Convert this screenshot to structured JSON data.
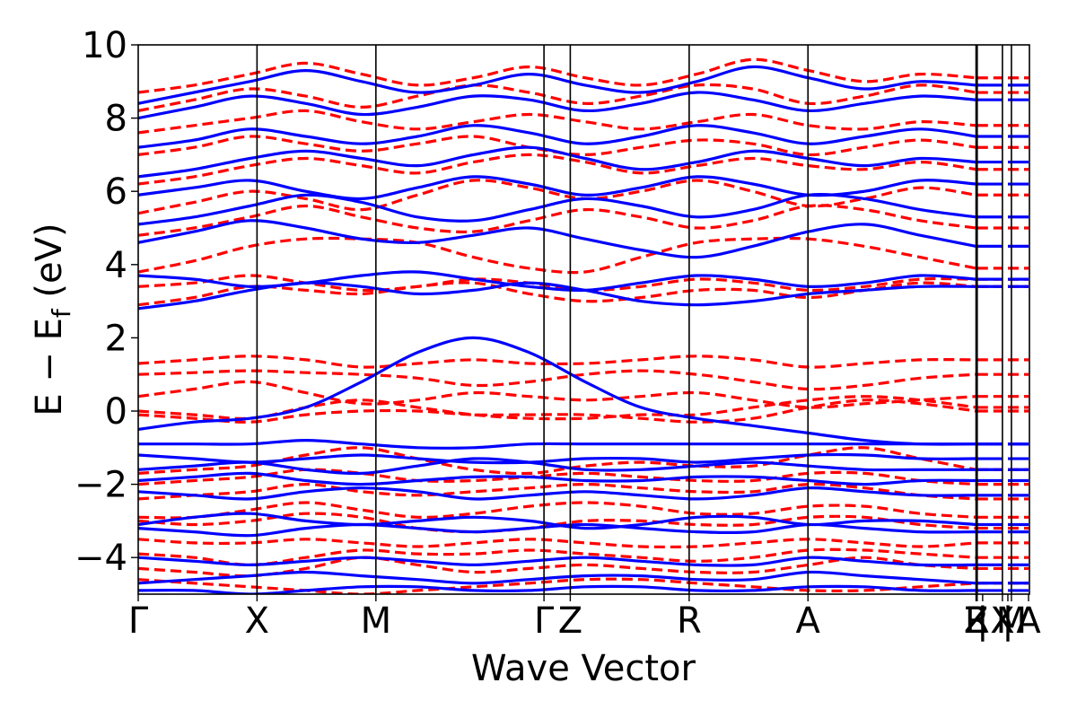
{
  "chart_data": {
    "type": "line",
    "title": "",
    "xlabel": "Wave Vector",
    "ylabel": "E − E_f (eV)",
    "ylabel_main": "E − E",
    "ylabel_sub": "f",
    "ylabel_unit": " (eV)",
    "ylim": [
      -5,
      10
    ],
    "yticks": [
      -4,
      -2,
      0,
      2,
      4,
      6,
      8,
      10
    ],
    "ytick_labels": [
      "−4",
      "−2",
      "0",
      "2",
      "4",
      "6",
      "8",
      "10"
    ],
    "x_range": [
      0,
      1
    ],
    "kpoints": [
      {
        "label": "Γ",
        "x": 0.0
      },
      {
        "label": "X",
        "x": 0.1333
      },
      {
        "label": "M",
        "x": 0.2667
      },
      {
        "label": "Γ",
        "x": 0.4553
      },
      {
        "label": "Z",
        "x": 0.4848
      },
      {
        "label": "R",
        "x": 0.6182
      },
      {
        "label": "A",
        "x": 0.7515
      },
      {
        "label": "Z",
        "x": 0.9401
      },
      {
        "label": "R",
        "x": 0.9414
      },
      {
        "label": "|",
        "x": 0.9475
      },
      {
        "label": "X",
        "x": 0.9697
      },
      {
        "label": "|",
        "x": 0.9758
      },
      {
        "label": "M",
        "x": 0.9798
      },
      {
        "label": "A",
        "x": 0.999
      }
    ],
    "grid": false,
    "legend": "none",
    "series": [
      {
        "style": "dashed",
        "color": "#ff0000",
        "bands": [
          [
            -4.6,
            -4.7,
            -4.8,
            -4.9,
            -5.0,
            -4.9,
            -4.8,
            -4.7,
            -4.6,
            -4.6,
            -4.7,
            -4.8,
            -4.9,
            -4.9,
            -4.8,
            -4.7
          ],
          [
            -4.3,
            -4.4,
            -4.5,
            -4.3,
            -4.0,
            -4.2,
            -4.4,
            -4.3,
            -4.2,
            -4.3,
            -4.4,
            -4.4,
            -4.2,
            -4.0,
            -4.2,
            -4.3
          ],
          [
            -3.9,
            -4.0,
            -4.2,
            -4.0,
            -3.8,
            -3.9,
            -3.9,
            -3.8,
            -3.9,
            -4.0,
            -4.1,
            -4.0,
            -3.8,
            -3.8,
            -3.9,
            -4.0
          ],
          [
            -3.5,
            -3.6,
            -3.6,
            -3.5,
            -3.6,
            -3.7,
            -3.6,
            -3.5,
            -3.6,
            -3.7,
            -3.7,
            -3.6,
            -3.5,
            -3.6,
            -3.7,
            -3.6
          ],
          [
            -3.0,
            -3.1,
            -3.0,
            -2.8,
            -2.9,
            -3.2,
            -3.3,
            -3.2,
            -3.0,
            -3.0,
            -3.1,
            -3.1,
            -2.9,
            -2.9,
            -3.1,
            -3.2
          ],
          [
            -2.9,
            -2.9,
            -2.7,
            -2.5,
            -2.7,
            -2.9,
            -2.8,
            -2.6,
            -2.5,
            -2.6,
            -2.8,
            -2.8,
            -2.6,
            -2.6,
            -2.8,
            -2.9
          ],
          [
            -2.4,
            -2.3,
            -2.2,
            -2.0,
            -2.2,
            -2.3,
            -2.2,
            -2.1,
            -2.0,
            -2.1,
            -2.2,
            -2.2,
            -2.0,
            -2.1,
            -2.3,
            -2.4
          ],
          [
            -2.0,
            -1.9,
            -1.8,
            -1.6,
            -1.7,
            -1.9,
            -1.9,
            -1.8,
            -1.7,
            -1.8,
            -1.9,
            -1.9,
            -1.7,
            -1.7,
            -1.9,
            -2.0
          ],
          [
            -1.7,
            -1.6,
            -1.5,
            -1.2,
            -1.0,
            -1.3,
            -1.6,
            -1.7,
            -1.5,
            -1.4,
            -1.5,
            -1.5,
            -1.2,
            -1.0,
            -1.3,
            -1.6
          ],
          [
            -0.1,
            -0.2,
            -0.3,
            -0.1,
            0.0,
            0.0,
            -0.1,
            -0.1,
            -0.1,
            -0.2,
            -0.3,
            -0.2,
            0.1,
            0.3,
            0.2,
            0.0
          ],
          [
            0.0,
            -0.1,
            -0.2,
            0.1,
            0.3,
            0.1,
            -0.1,
            -0.2,
            -0.2,
            -0.1,
            -0.1,
            0.1,
            0.3,
            0.4,
            0.3,
            0.1
          ],
          [
            0.4,
            0.6,
            0.8,
            0.5,
            0.2,
            0.3,
            0.5,
            0.4,
            0.3,
            0.4,
            0.5,
            0.3,
            0.1,
            0.2,
            0.3,
            0.4
          ],
          [
            1.0,
            1.05,
            1.1,
            1.05,
            1.0,
            0.9,
            0.7,
            0.8,
            1.0,
            1.1,
            1.0,
            0.8,
            0.6,
            0.7,
            0.9,
            1.0
          ],
          [
            1.3,
            1.4,
            1.5,
            1.4,
            1.2,
            1.3,
            1.4,
            1.3,
            1.3,
            1.4,
            1.5,
            1.4,
            1.2,
            1.3,
            1.4,
            1.4
          ],
          [
            2.9,
            3.1,
            3.4,
            3.3,
            3.2,
            3.4,
            3.5,
            3.2,
            3.0,
            3.1,
            3.3,
            3.3,
            3.1,
            3.3,
            3.5,
            3.4
          ],
          [
            3.4,
            3.5,
            3.7,
            3.5,
            3.3,
            3.4,
            3.6,
            3.5,
            3.3,
            3.4,
            3.6,
            3.5,
            3.3,
            3.4,
            3.6,
            3.6
          ],
          [
            3.8,
            4.1,
            4.5,
            4.7,
            4.7,
            4.6,
            4.2,
            3.9,
            3.8,
            4.2,
            4.6,
            4.7,
            4.7,
            4.5,
            4.2,
            3.9
          ],
          [
            4.8,
            5.0,
            5.3,
            5.6,
            5.3,
            5.0,
            4.9,
            5.2,
            5.5,
            5.3,
            5.0,
            5.2,
            5.6,
            5.5,
            5.2,
            5.0
          ],
          [
            5.4,
            5.7,
            6.0,
            5.8,
            5.5,
            5.9,
            6.3,
            6.1,
            5.8,
            6.0,
            6.3,
            6.0,
            5.6,
            5.8,
            6.1,
            5.9
          ],
          [
            6.2,
            6.4,
            6.7,
            6.9,
            6.7,
            6.5,
            6.8,
            7.0,
            6.8,
            6.5,
            6.7,
            6.9,
            6.7,
            6.6,
            6.8,
            6.6
          ],
          [
            7.0,
            7.2,
            7.5,
            7.3,
            7.1,
            7.3,
            7.5,
            7.2,
            7.0,
            7.2,
            7.4,
            7.3,
            7.0,
            7.2,
            7.4,
            7.2
          ],
          [
            7.6,
            7.8,
            8.0,
            8.2,
            7.9,
            7.7,
            7.9,
            8.1,
            7.9,
            7.7,
            7.9,
            8.1,
            7.8,
            7.7,
            7.9,
            7.8
          ],
          [
            8.2,
            8.5,
            8.8,
            8.6,
            8.3,
            8.6,
            8.9,
            8.7,
            8.4,
            8.6,
            8.9,
            8.8,
            8.4,
            8.6,
            8.9,
            8.7
          ],
          [
            8.7,
            8.9,
            9.2,
            9.5,
            9.2,
            8.9,
            9.1,
            9.4,
            9.1,
            8.9,
            9.2,
            9.6,
            9.3,
            9.0,
            9.2,
            9.1
          ]
        ]
      },
      {
        "style": "solid",
        "color": "#0000ff",
        "bands": [
          [
            -4.9,
            -4.9,
            -5.0,
            -4.9,
            -4.8,
            -4.8,
            -4.9,
            -4.9,
            -4.8,
            -4.8,
            -4.9,
            -4.9,
            -4.8,
            -4.8,
            -4.9,
            -4.9
          ],
          [
            -4.7,
            -4.6,
            -4.5,
            -4.4,
            -4.5,
            -4.6,
            -4.7,
            -4.6,
            -4.5,
            -4.5,
            -4.6,
            -4.6,
            -4.4,
            -4.5,
            -4.6,
            -4.7
          ],
          [
            -4.0,
            -4.1,
            -4.2,
            -4.1,
            -4.0,
            -4.1,
            -4.2,
            -4.1,
            -4.0,
            -4.1,
            -4.2,
            -4.2,
            -4.0,
            -4.1,
            -4.2,
            -4.2
          ],
          [
            -3.2,
            -3.3,
            -3.4,
            -3.2,
            -3.1,
            -3.2,
            -3.3,
            -3.2,
            -3.1,
            -3.2,
            -3.3,
            -3.3,
            -3.1,
            -3.2,
            -3.3,
            -3.3
          ],
          [
            -3.1,
            -2.9,
            -2.8,
            -3.0,
            -3.1,
            -3.0,
            -2.9,
            -3.0,
            -3.2,
            -3.1,
            -2.9,
            -2.9,
            -3.1,
            -3.0,
            -3.0,
            -3.1
          ],
          [
            -2.2,
            -2.3,
            -2.4,
            -2.2,
            -2.1,
            -2.2,
            -2.4,
            -2.3,
            -2.2,
            -2.3,
            -2.4,
            -2.3,
            -2.1,
            -2.2,
            -2.3,
            -2.3
          ],
          [
            -1.9,
            -1.8,
            -1.7,
            -1.9,
            -2.0,
            -1.9,
            -1.8,
            -1.8,
            -1.9,
            -1.9,
            -1.8,
            -1.8,
            -1.9,
            -2.0,
            -1.9,
            -1.9
          ],
          [
            -1.6,
            -1.5,
            -1.4,
            -1.6,
            -1.7,
            -1.5,
            -1.3,
            -1.4,
            -1.6,
            -1.6,
            -1.5,
            -1.4,
            -1.5,
            -1.6,
            -1.6,
            -1.6
          ],
          [
            -1.2,
            -1.3,
            -1.4,
            -1.3,
            -1.2,
            -1.3,
            -1.4,
            -1.4,
            -1.3,
            -1.3,
            -1.4,
            -1.3,
            -1.2,
            -1.2,
            -1.3,
            -1.3
          ],
          [
            -0.9,
            -0.9,
            -0.9,
            -0.8,
            -0.9,
            -1.0,
            -1.0,
            -0.9,
            -0.9,
            -0.9,
            -0.9,
            -0.9,
            -0.9,
            -0.9,
            -0.9,
            -0.9
          ],
          [
            -0.5,
            -0.3,
            -0.2,
            0.1,
            0.8,
            1.6,
            2.0,
            1.6,
            0.8,
            0.1,
            -0.2,
            -0.4,
            -0.6,
            -0.8,
            -0.9,
            -0.9
          ],
          [
            2.8,
            3.0,
            3.3,
            3.5,
            3.4,
            3.2,
            3.3,
            3.5,
            3.3,
            3.0,
            2.9,
            3.0,
            3.2,
            3.3,
            3.4,
            3.4
          ],
          [
            3.7,
            3.6,
            3.4,
            3.5,
            3.7,
            3.8,
            3.6,
            3.4,
            3.3,
            3.5,
            3.7,
            3.6,
            3.4,
            3.5,
            3.7,
            3.6
          ],
          [
            4.6,
            4.9,
            5.2,
            5.0,
            4.7,
            4.6,
            4.8,
            5.0,
            4.7,
            4.4,
            4.2,
            4.5,
            4.9,
            5.1,
            4.8,
            4.5
          ],
          [
            5.1,
            5.3,
            5.6,
            5.9,
            5.7,
            5.3,
            5.2,
            5.5,
            5.8,
            5.6,
            5.3,
            5.5,
            5.9,
            5.8,
            5.5,
            5.3
          ],
          [
            5.9,
            6.1,
            6.3,
            6.0,
            5.8,
            6.1,
            6.4,
            6.2,
            5.9,
            6.1,
            6.4,
            6.2,
            5.9,
            6.0,
            6.3,
            6.2
          ],
          [
            6.4,
            6.6,
            6.9,
            7.1,
            6.9,
            6.7,
            7.0,
            7.2,
            6.9,
            6.6,
            6.8,
            7.1,
            6.9,
            6.7,
            6.9,
            6.8
          ],
          [
            7.2,
            7.4,
            7.7,
            7.5,
            7.3,
            7.5,
            7.8,
            7.6,
            7.3,
            7.5,
            7.8,
            7.6,
            7.3,
            7.5,
            7.7,
            7.5
          ],
          [
            8.0,
            8.3,
            8.6,
            8.4,
            8.1,
            8.3,
            8.6,
            8.5,
            8.2,
            8.4,
            8.7,
            8.5,
            8.2,
            8.4,
            8.6,
            8.5
          ],
          [
            8.4,
            8.7,
            9.0,
            9.3,
            9.0,
            8.7,
            8.9,
            9.2,
            8.9,
            8.7,
            9.0,
            9.4,
            9.1,
            8.8,
            9.0,
            8.9
          ]
        ]
      }
    ]
  }
}
